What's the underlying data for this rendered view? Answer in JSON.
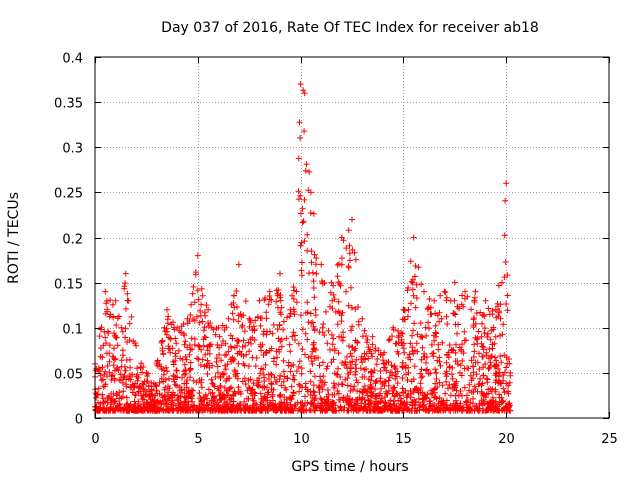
{
  "chart_data": {
    "type": "scatter",
    "title": "Day 037 of 2016, Rate Of TEC Index for receiver ab18",
    "xlabel": "GPS time / hours",
    "ylabel": "ROTI / TECUs",
    "xlim": [
      0,
      25
    ],
    "ylim": [
      0,
      0.4
    ],
    "x_ticks": [
      0,
      5,
      10,
      15,
      20,
      25
    ],
    "y_ticks": [
      0,
      0.05,
      0.1,
      0.15,
      0.2,
      0.25,
      0.3,
      0.35,
      0.4
    ],
    "x_tick_labels": [
      "0",
      "5",
      "10",
      "15",
      "20",
      "25"
    ],
    "y_tick_labels": [
      "0",
      "0.05",
      "0.1",
      "0.15",
      "0.2",
      "0.25",
      "0.3",
      "0.35",
      "0.4"
    ],
    "grid": true,
    "marker": "plus",
    "color": "#ff0000",
    "envelope": {
      "x": [
        0.0,
        0.5,
        1.0,
        1.5,
        2.0,
        2.5,
        3.0,
        3.5,
        4.0,
        4.5,
        5.0,
        5.5,
        6.0,
        6.5,
        7.0,
        7.5,
        8.0,
        8.5,
        9.0,
        9.5,
        10.0,
        10.2,
        10.5,
        11.0,
        11.5,
        12.0,
        12.5,
        13.0,
        13.5,
        14.0,
        14.5,
        15.0,
        15.5,
        16.0,
        16.5,
        17.0,
        17.5,
        18.0,
        18.5,
        19.0,
        19.5,
        20.0,
        20.2
      ],
      "y": [
        0.06,
        0.14,
        0.13,
        0.16,
        0.08,
        0.05,
        0.06,
        0.12,
        0.1,
        0.11,
        0.18,
        0.12,
        0.1,
        0.11,
        0.17,
        0.11,
        0.13,
        0.14,
        0.16,
        0.12,
        0.37,
        0.36,
        0.25,
        0.17,
        0.15,
        0.2,
        0.22,
        0.11,
        0.09,
        0.07,
        0.1,
        0.12,
        0.2,
        0.14,
        0.13,
        0.14,
        0.15,
        0.14,
        0.14,
        0.13,
        0.12,
        0.26,
        0.05
      ]
    },
    "point_count": 2600
  }
}
